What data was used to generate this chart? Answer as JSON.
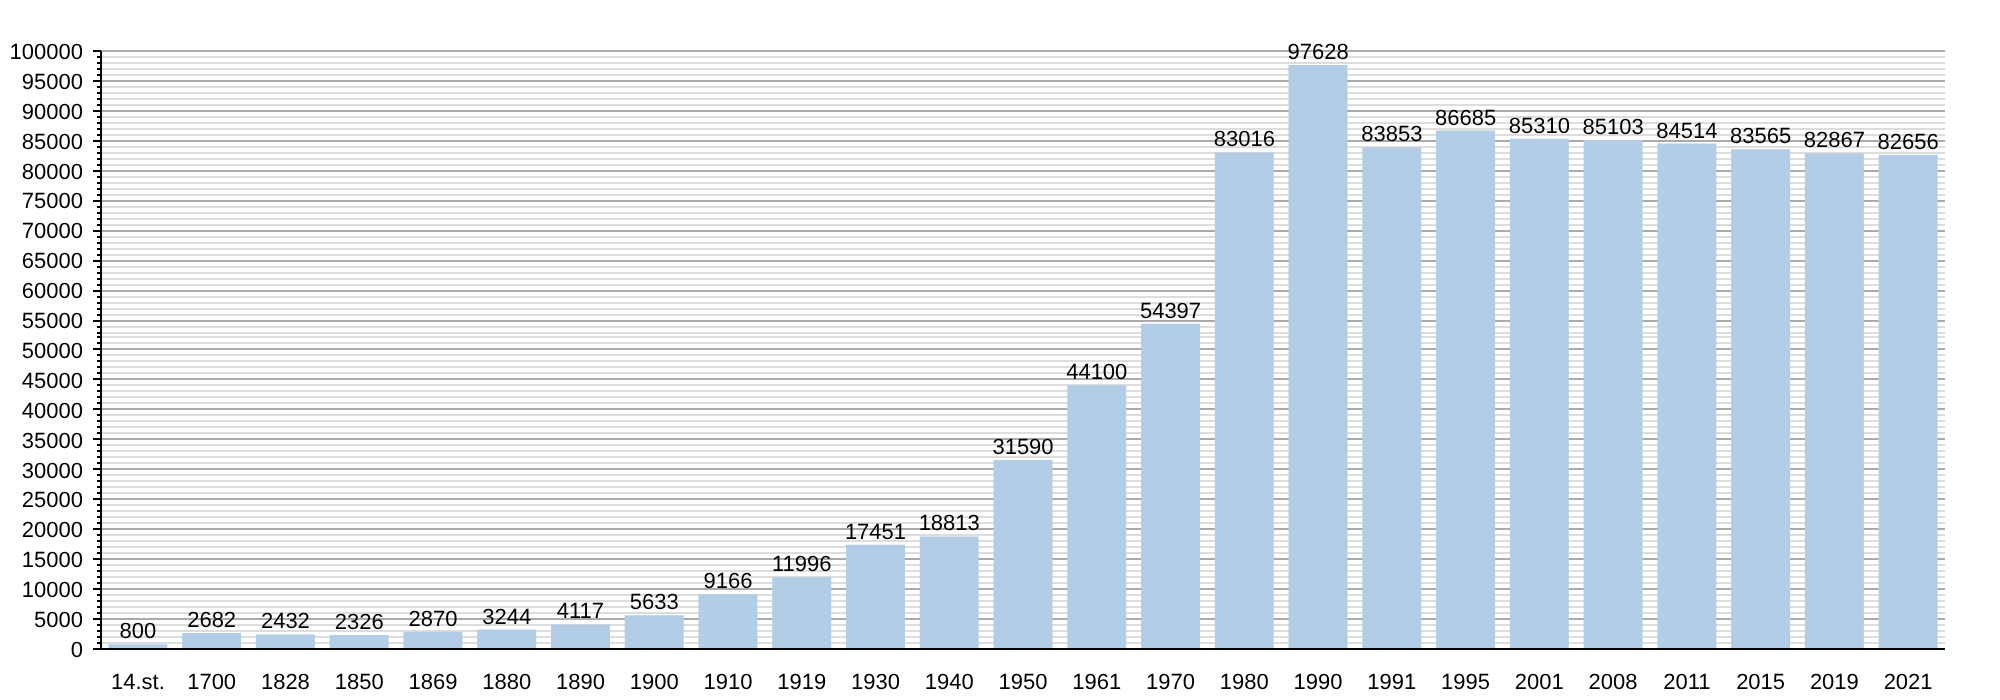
{
  "chart_data": {
    "type": "bar",
    "categories": [
      "14.st.",
      "1700",
      "1828",
      "1850",
      "1869",
      "1880",
      "1890",
      "1900",
      "1910",
      "1919",
      "1930",
      "1940",
      "1950",
      "1961",
      "1970",
      "1980",
      "1990",
      "1991",
      "1995",
      "2001",
      "2008",
      "2011",
      "2015",
      "2019",
      "2021"
    ],
    "values": [
      800,
      2682,
      2432,
      2326,
      2870,
      3244,
      4117,
      5633,
      9166,
      11996,
      17451,
      18813,
      31590,
      44100,
      54397,
      83016,
      97628,
      83853,
      86685,
      85310,
      85103,
      84514,
      83565,
      82867,
      82656
    ],
    "color": "#b3cde6",
    "ylim": [
      0,
      100000
    ],
    "yticks": [
      0,
      5000,
      10000,
      15000,
      20000,
      25000,
      30000,
      35000,
      40000,
      45000,
      50000,
      55000,
      60000,
      65000,
      70000,
      75000,
      80000,
      85000,
      90000,
      95000,
      100000
    ],
    "grid": "y",
    "data_labels": true
  }
}
